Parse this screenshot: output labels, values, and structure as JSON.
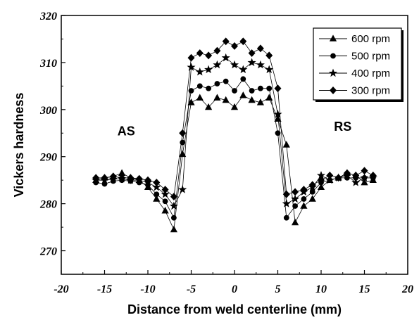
{
  "chart_data": {
    "type": "line",
    "xlabel": "Distance from weld centerline (mm)",
    "ylabel": "Vickers hardness",
    "xlim": [
      -20,
      20
    ],
    "ylim": [
      265,
      320
    ],
    "xticks": [
      -20,
      -15,
      -10,
      -5,
      0,
      5,
      10,
      15,
      20
    ],
    "yticks": [
      270,
      280,
      290,
      300,
      310,
      320
    ],
    "xtick_labels": [
      "-20",
      "-15",
      "-10",
      "-5",
      "0",
      "5",
      "10",
      "15",
      "20"
    ],
    "ytick_labels": [
      "270",
      "280",
      "290",
      "300",
      "310",
      "320"
    ],
    "grid": false,
    "legend_position": "top-right",
    "annotations": [
      {
        "text": "AS",
        "x": -12.5,
        "y": 294.5
      },
      {
        "text": "RS",
        "x": 12.5,
        "y": 295.5
      }
    ],
    "x": [
      -16,
      -15,
      -14,
      -13,
      -12,
      -11,
      -10,
      -9,
      -8,
      -7,
      -6,
      -5,
      -4,
      -3,
      -2,
      -1,
      0,
      1,
      2,
      3,
      4,
      5,
      6,
      7,
      8,
      9,
      10,
      11,
      12,
      13,
      14,
      15,
      16
    ],
    "series": [
      {
        "name": "600 rpm",
        "marker": "triangle",
        "values": [
          285.0,
          285.5,
          285.8,
          286.5,
          285.5,
          285.0,
          283.5,
          281.0,
          278.5,
          274.5,
          290.5,
          301.5,
          302.5,
          300.5,
          302.5,
          302.0,
          300.5,
          303.0,
          302.0,
          301.5,
          302.5,
          298.0,
          292.5,
          276.0,
          279.5,
          281.0,
          283.5,
          285.0,
          285.5,
          286.5,
          286.0,
          284.5,
          285.0
        ]
      },
      {
        "name": "500 rpm",
        "marker": "circle",
        "values": [
          284.5,
          284.2,
          284.8,
          285.0,
          284.8,
          284.5,
          284.0,
          282.0,
          280.5,
          277.0,
          293.0,
          304.0,
          305.0,
          304.5,
          305.5,
          306.0,
          304.0,
          306.5,
          304.0,
          304.5,
          304.5,
          295.0,
          277.0,
          279.5,
          281.0,
          282.5,
          284.5,
          285.0,
          285.5,
          285.5,
          285.5,
          285.5,
          285.5
        ]
      },
      {
        "name": "400 rpm",
        "marker": "star",
        "values": [
          285.0,
          285.0,
          285.2,
          285.3,
          285.0,
          285.0,
          284.5,
          283.5,
          282.0,
          279.5,
          283.0,
          309.0,
          308.0,
          308.5,
          309.5,
          311.0,
          309.5,
          308.5,
          310.0,
          309.5,
          308.5,
          299.0,
          280.0,
          281.0,
          282.5,
          283.5,
          286.0,
          285.0,
          285.5,
          286.0,
          284.5,
          285.5,
          285.5
        ]
      },
      {
        "name": "300 rpm",
        "marker": "diamond",
        "values": [
          285.5,
          285.5,
          285.8,
          285.5,
          285.5,
          285.3,
          285.0,
          284.5,
          283.0,
          281.5,
          295.0,
          311.0,
          312.0,
          311.5,
          312.5,
          314.5,
          313.5,
          314.5,
          312.0,
          313.0,
          311.5,
          304.5,
          282.0,
          282.5,
          283.0,
          284.0,
          285.0,
          286.0,
          285.5,
          286.5,
          286.0,
          287.0,
          286.0
        ]
      }
    ]
  }
}
